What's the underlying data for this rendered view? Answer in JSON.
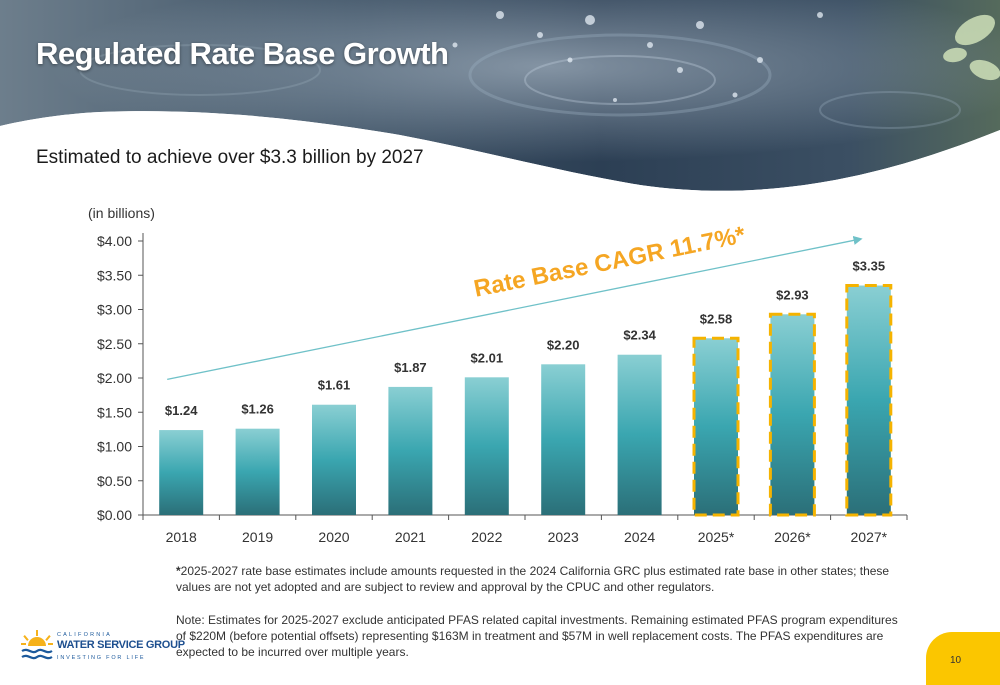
{
  "page": {
    "title": "Regulated Rate Base Growth",
    "subtitle": "Estimated to achieve over $3.3 billion by 2027",
    "page_number": "10"
  },
  "chart_data": {
    "type": "bar",
    "unit_note": "(in billions)",
    "categories": [
      "2018",
      "2019",
      "2020",
      "2021",
      "2022",
      "2023",
      "2024",
      "2025*",
      "2026*",
      "2027*"
    ],
    "values": [
      1.24,
      1.26,
      1.61,
      1.87,
      2.01,
      2.2,
      2.34,
      2.58,
      2.93,
      3.35
    ],
    "value_labels": [
      "$1.24",
      "$1.26",
      "$1.61",
      "$1.87",
      "$2.01",
      "$2.20",
      "$2.34",
      "$2.58",
      "$2.93",
      "$3.35"
    ],
    "estimated": [
      false,
      false,
      false,
      false,
      false,
      false,
      false,
      true,
      true,
      true
    ],
    "y_ticks": [
      0,
      0.5,
      1,
      1.5,
      2,
      2.5,
      3,
      3.5,
      4
    ],
    "y_tick_labels": [
      "$0.00",
      "$0.50",
      "$1.00",
      "$1.50",
      "$2.00",
      "$2.50",
      "$3.00",
      "$3.50",
      "$4.00"
    ],
    "ylim": [
      0,
      4
    ],
    "xlabel": "",
    "ylabel": "",
    "grid": false,
    "annotation": "Rate Base CAGR 11.7%*",
    "trend_arrow": {
      "from": [
        "2018",
        1.98
      ],
      "to": [
        "2027*",
        4.03
      ]
    },
    "colors": {
      "bar_top": "#8acfd3",
      "bar_mid": "#3aa6b0",
      "bar_bottom": "#2b6f78",
      "estimate_border": "#f5b300",
      "annotation": "#f5a623",
      "arrow": "#6fc1c8"
    }
  },
  "footnotes": {
    "star": "*",
    "note1": "2025-2027 rate base estimates include amounts requested in the 2024 California GRC plus estimated rate base in other states; these values are not yet adopted and are subject to review and approval by the CPUC and other regulators.",
    "note2": "Note: Estimates for 2025-2027 exclude anticipated PFAS related capital investments. Remaining estimated PFAS program expenditures of $220M (before potential offsets) representing $163M in treatment and $57M in well replacement costs. The PFAS expenditures are expected to be incurred over multiple years."
  },
  "logo": {
    "top_text": "CALIFORNIA",
    "name": "WATER SERVICE GROUP",
    "tagline": "INVESTING FOR LIFE"
  }
}
